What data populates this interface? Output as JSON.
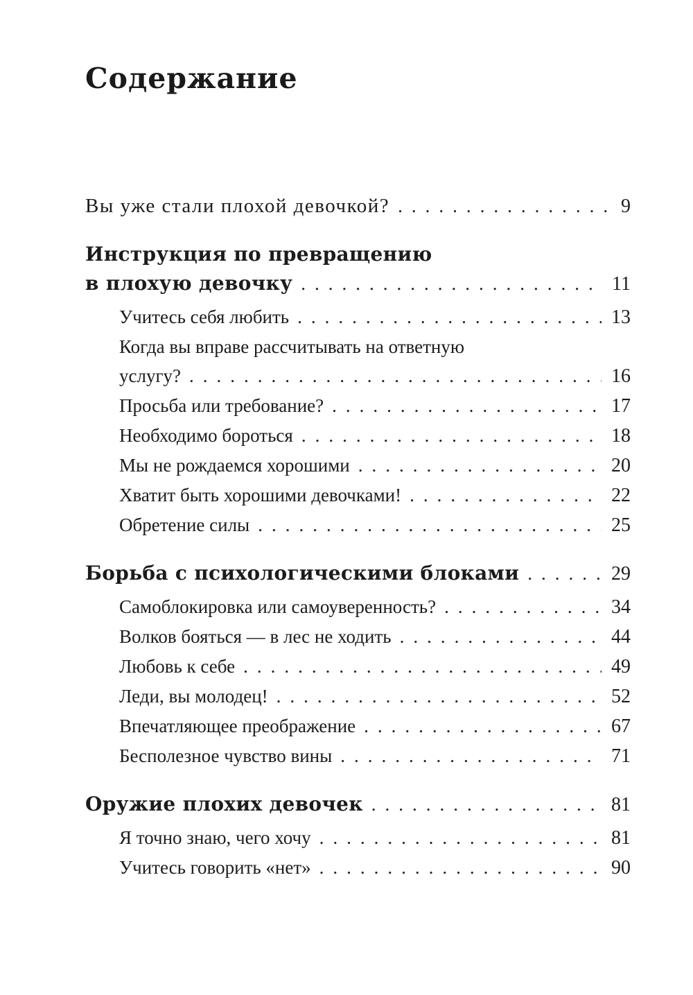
{
  "page": {
    "background_color": "#ffffff",
    "text_color": "#1c1c1c"
  },
  "toc": {
    "title": "Содержание",
    "entries": [
      {
        "level": "chapter",
        "bold": false,
        "lines": [
          {
            "text": "Вы уже стали плохой девочкой?",
            "page": "9"
          }
        ]
      },
      {
        "level": "chapter",
        "bold": true,
        "lines": [
          {
            "text": "Инструкция по превращению"
          },
          {
            "text": "в плохую девочку",
            "page": "11"
          }
        ]
      },
      {
        "level": "sub",
        "lines": [
          {
            "text": "Учитесь себя любить",
            "page": "13"
          }
        ]
      },
      {
        "level": "sub",
        "lines": [
          {
            "text": "Когда вы вправе рассчитывать на ответную"
          },
          {
            "text": "услугу?",
            "page": "16"
          }
        ]
      },
      {
        "level": "sub",
        "lines": [
          {
            "text": "Просьба или требование?",
            "page": "17"
          }
        ]
      },
      {
        "level": "sub",
        "lines": [
          {
            "text": "Необходимо бороться",
            "page": "18"
          }
        ]
      },
      {
        "level": "sub",
        "lines": [
          {
            "text": "Мы не рождаемся хорошими",
            "page": "20"
          }
        ]
      },
      {
        "level": "sub",
        "lines": [
          {
            "text": "Хватит быть хорошими девочками!",
            "page": "22"
          }
        ]
      },
      {
        "level": "sub",
        "lines": [
          {
            "text": "Обретение силы",
            "page": "25"
          }
        ]
      },
      {
        "level": "chapter",
        "bold": true,
        "lines": [
          {
            "text": "Борьба с психологическими блоками",
            "page": "29"
          }
        ]
      },
      {
        "level": "sub",
        "lines": [
          {
            "text": "Самоблокировка или самоуверенность?",
            "page": "34"
          }
        ]
      },
      {
        "level": "sub",
        "lines": [
          {
            "text": "Волков бояться — в лес не ходить",
            "page": "44"
          }
        ]
      },
      {
        "level": "sub",
        "lines": [
          {
            "text": "Любовь к себе",
            "page": "49"
          }
        ]
      },
      {
        "level": "sub",
        "lines": [
          {
            "text": "Леди, вы молодец!",
            "page": "52"
          }
        ]
      },
      {
        "level": "sub",
        "lines": [
          {
            "text": "Впечатляющее преображение",
            "page": "67"
          }
        ]
      },
      {
        "level": "sub",
        "lines": [
          {
            "text": "Бесполезное чувство вины",
            "page": "71"
          }
        ]
      },
      {
        "level": "chapter",
        "bold": true,
        "lines": [
          {
            "text": "Оружие плохих девочек",
            "page": "81"
          }
        ]
      },
      {
        "level": "sub",
        "lines": [
          {
            "text": "Я точно знаю, чего хочу",
            "page": "81"
          }
        ]
      },
      {
        "level": "sub",
        "lines": [
          {
            "text": "Учитесь говорить «нет»",
            "page": "90"
          }
        ]
      }
    ]
  }
}
